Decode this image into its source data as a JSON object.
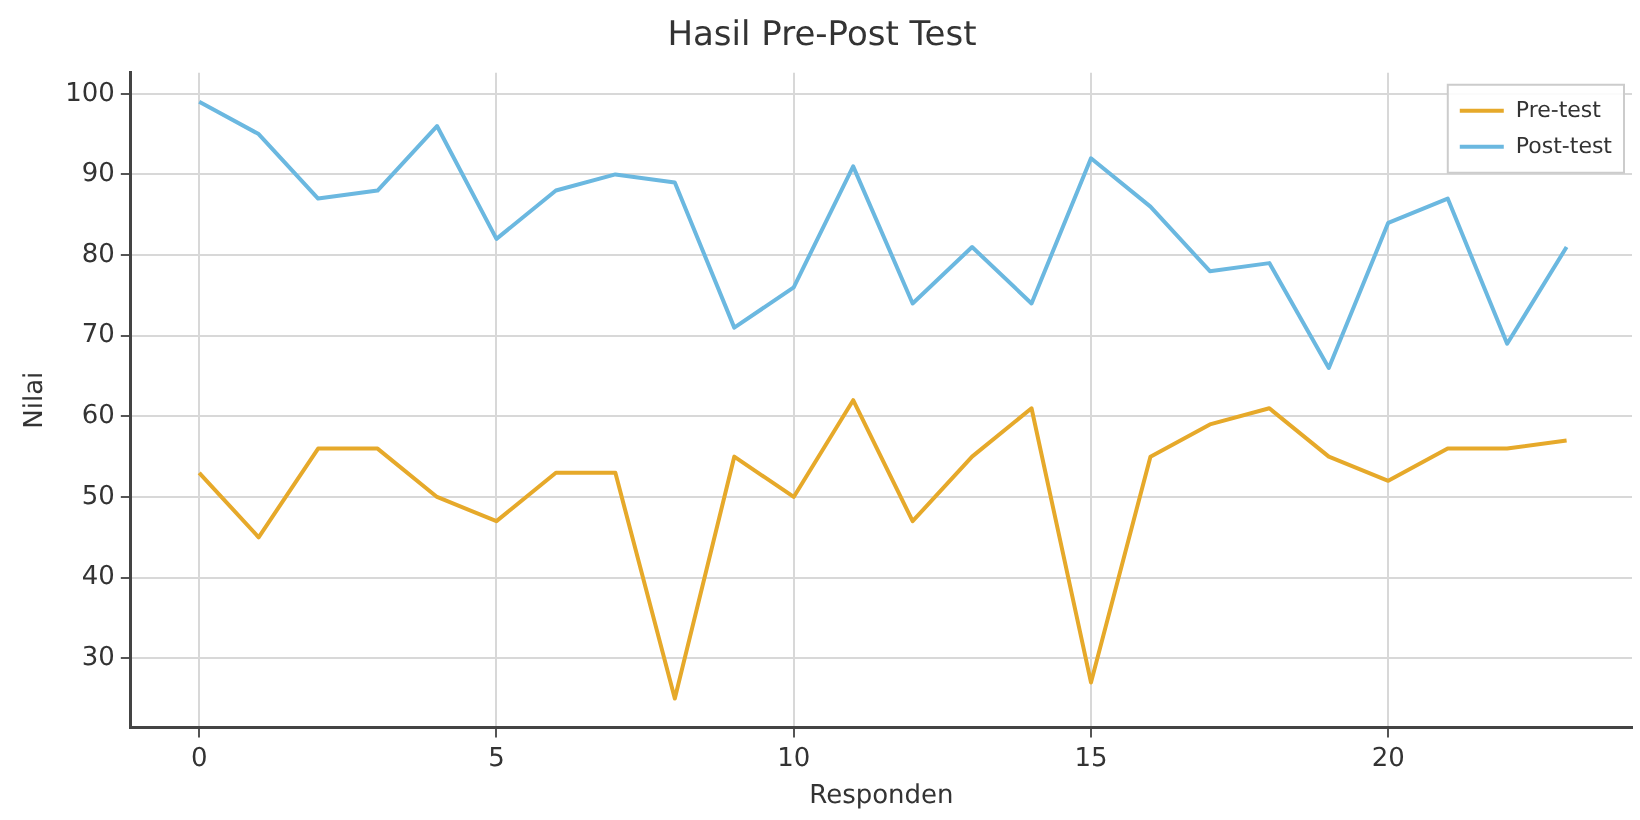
{
  "chart_data": {
    "type": "line",
    "title": "Hasil Pre-Post Test",
    "xlabel": "Responden",
    "ylabel": "Nilai",
    "x": [
      0,
      1,
      2,
      3,
      4,
      5,
      6,
      7,
      8,
      9,
      10,
      11,
      12,
      13,
      14,
      15,
      16,
      17,
      18,
      19,
      20,
      21,
      22,
      23
    ],
    "series": [
      {
        "name": "Pre-test",
        "color": "#e6a92a",
        "values": [
          53,
          45,
          56,
          56,
          50,
          47,
          53,
          53,
          25,
          55,
          50,
          62,
          47,
          55,
          61,
          27,
          55,
          59,
          61,
          55,
          52,
          56,
          56,
          57
        ]
      },
      {
        "name": "Post-test",
        "color": "#6bb8e0",
        "values": [
          99,
          95,
          87,
          88,
          96,
          82,
          88,
          90,
          89,
          71,
          76,
          91,
          74,
          81,
          74,
          92,
          86,
          78,
          79,
          66,
          84,
          87,
          69,
          81
        ]
      }
    ],
    "xlim": [
      -1.15,
      24.1
    ],
    "xticks": [
      0,
      5,
      10,
      15,
      20
    ],
    "ylim": [
      21.4,
      102.6
    ],
    "yticks": [
      30,
      40,
      50,
      60,
      70,
      80,
      90,
      100
    ],
    "grid": true,
    "legend": "top right",
    "marker": "none",
    "line_style": "solid"
  }
}
